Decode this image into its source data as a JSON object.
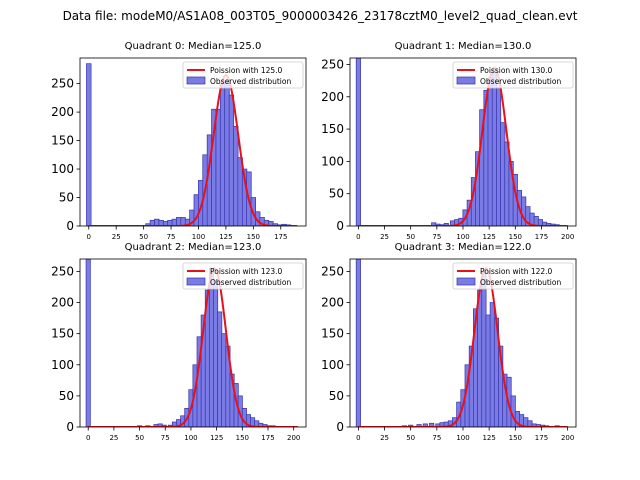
{
  "figure": {
    "suptitle": "Data file: modeM0/AS1A08_003T05_9000003426_23178cztM0_level2_quad_clean.evt"
  },
  "chart_data": [
    {
      "type": "bar",
      "title": "Quadrant 0: Median=125.0",
      "xlim": [
        -8,
        198
      ],
      "ylim": [
        0,
        295
      ],
      "xticks": [
        0,
        25,
        50,
        75,
        100,
        125,
        150,
        175
      ],
      "yticks": [
        0,
        50,
        100,
        150,
        200,
        250
      ],
      "bin_width": 4.2,
      "bins": [
        [
          0,
          285
        ],
        [
          54,
          4
        ],
        [
          58,
          10
        ],
        [
          62,
          12
        ],
        [
          66,
          10
        ],
        [
          70,
          8
        ],
        [
          74,
          10
        ],
        [
          78,
          12
        ],
        [
          82,
          15
        ],
        [
          86,
          15
        ],
        [
          90,
          12
        ],
        [
          94,
          28
        ],
        [
          98,
          55
        ],
        [
          102,
          80
        ],
        [
          106,
          125
        ],
        [
          110,
          160
        ],
        [
          114,
          205
        ],
        [
          118,
          205
        ],
        [
          122,
          250
        ],
        [
          126,
          255
        ],
        [
          130,
          230
        ],
        [
          134,
          175
        ],
        [
          138,
          120
        ],
        [
          142,
          100
        ],
        [
          146,
          95
        ],
        [
          150,
          50
        ],
        [
          154,
          25
        ],
        [
          158,
          15
        ],
        [
          162,
          10
        ],
        [
          166,
          8
        ],
        [
          170,
          4
        ],
        [
          174,
          2
        ],
        [
          178,
          3
        ],
        [
          182,
          2
        ],
        [
          186,
          1
        ]
      ],
      "poisson_mean": 125.0,
      "poisson_peak": 265,
      "legend": [
        "Poission with 125.0",
        "Observed distribution"
      ]
    },
    {
      "type": "bar",
      "title": "Quadrant 1: Median=130.0",
      "xlim": [
        -8,
        208
      ],
      "ylim": [
        0,
        260
      ],
      "xticks": [
        0,
        25,
        50,
        75,
        100,
        125,
        150,
        175,
        200
      ],
      "yticks": [
        0,
        50,
        100,
        150,
        200,
        250
      ],
      "bin_width": 4.2,
      "bins": [
        [
          0,
          260
        ],
        [
          72,
          5
        ],
        [
          76,
          3
        ],
        [
          80,
          2
        ],
        [
          84,
          4
        ],
        [
          90,
          8
        ],
        [
          94,
          10
        ],
        [
          98,
          12
        ],
        [
          102,
          25
        ],
        [
          106,
          40
        ],
        [
          110,
          75
        ],
        [
          114,
          115
        ],
        [
          118,
          180
        ],
        [
          122,
          210
        ],
        [
          126,
          230
        ],
        [
          130,
          240
        ],
        [
          134,
          215
        ],
        [
          138,
          160
        ],
        [
          142,
          130
        ],
        [
          146,
          100
        ],
        [
          150,
          80
        ],
        [
          154,
          55
        ],
        [
          158,
          45
        ],
        [
          162,
          30
        ],
        [
          166,
          20
        ],
        [
          170,
          15
        ],
        [
          174,
          10
        ],
        [
          178,
          6
        ],
        [
          182,
          4
        ],
        [
          186,
          3
        ],
        [
          190,
          2
        ]
      ],
      "poisson_mean": 130.0,
      "poisson_peak": 245,
      "legend": [
        "Poission with 130.0",
        "Observed distribution"
      ]
    },
    {
      "type": "bar",
      "title": "Quadrant 2: Median=123.0",
      "xlim": [
        -8,
        212
      ],
      "ylim": [
        0,
        270
      ],
      "xticks": [
        0,
        25,
        50,
        75,
        100,
        125,
        150,
        175,
        200
      ],
      "yticks": [
        0,
        50,
        100,
        150,
        200,
        250
      ],
      "bin_width": 4.2,
      "bins": [
        [
          0,
          270
        ],
        [
          50,
          2
        ],
        [
          58,
          2
        ],
        [
          66,
          4
        ],
        [
          70,
          5
        ],
        [
          74,
          3
        ],
        [
          80,
          3
        ],
        [
          84,
          8
        ],
        [
          88,
          12
        ],
        [
          92,
          18
        ],
        [
          96,
          30
        ],
        [
          100,
          60
        ],
        [
          104,
          100
        ],
        [
          108,
          145
        ],
        [
          112,
          180
        ],
        [
          116,
          220
        ],
        [
          120,
          255
        ],
        [
          124,
          235
        ],
        [
          128,
          185
        ],
        [
          132,
          150
        ],
        [
          136,
          130
        ],
        [
          140,
          85
        ],
        [
          144,
          70
        ],
        [
          148,
          50
        ],
        [
          152,
          30
        ],
        [
          156,
          20
        ],
        [
          160,
          15
        ],
        [
          164,
          10
        ],
        [
          168,
          6
        ],
        [
          172,
          4
        ],
        [
          176,
          2
        ],
        [
          180,
          2
        ],
        [
          186,
          1
        ]
      ],
      "poisson_mean": 123.0,
      "poisson_peak": 255,
      "legend": [
        "Poission with 123.0",
        "Observed distribution"
      ]
    },
    {
      "type": "bar",
      "title": "Quadrant 3: Median=122.0",
      "xlim": [
        -8,
        208
      ],
      "ylim": [
        0,
        270
      ],
      "xticks": [
        0,
        25,
        50,
        75,
        100,
        125,
        150,
        175,
        200
      ],
      "yticks": [
        0,
        50,
        100,
        150,
        200,
        250
      ],
      "bin_width": 4.2,
      "bins": [
        [
          0,
          270
        ],
        [
          44,
          2
        ],
        [
          50,
          3
        ],
        [
          58,
          4
        ],
        [
          64,
          5
        ],
        [
          70,
          6
        ],
        [
          76,
          5
        ],
        [
          80,
          7
        ],
        [
          84,
          8
        ],
        [
          88,
          10
        ],
        [
          92,
          15
        ],
        [
          96,
          40
        ],
        [
          100,
          60
        ],
        [
          104,
          100
        ],
        [
          108,
          130
        ],
        [
          112,
          190
        ],
        [
          116,
          220
        ],
        [
          120,
          250
        ],
        [
          124,
          180
        ],
        [
          128,
          200
        ],
        [
          132,
          175
        ],
        [
          136,
          130
        ],
        [
          140,
          85
        ],
        [
          144,
          80
        ],
        [
          148,
          50
        ],
        [
          152,
          25
        ],
        [
          156,
          20
        ],
        [
          160,
          15
        ],
        [
          164,
          10
        ],
        [
          168,
          5
        ],
        [
          172,
          4
        ],
        [
          176,
          3
        ],
        [
          180,
          2
        ],
        [
          186,
          1
        ],
        [
          190,
          2
        ]
      ],
      "poisson_mean": 122.0,
      "poisson_peak": 255,
      "legend": [
        "Poission with 122.0",
        "Observed distribution"
      ]
    }
  ],
  "colors": {
    "bar_fill": "#7b7be6",
    "bar_edge": "#3333aa",
    "poisson_line": "#e8111b",
    "axis": "#000000"
  }
}
